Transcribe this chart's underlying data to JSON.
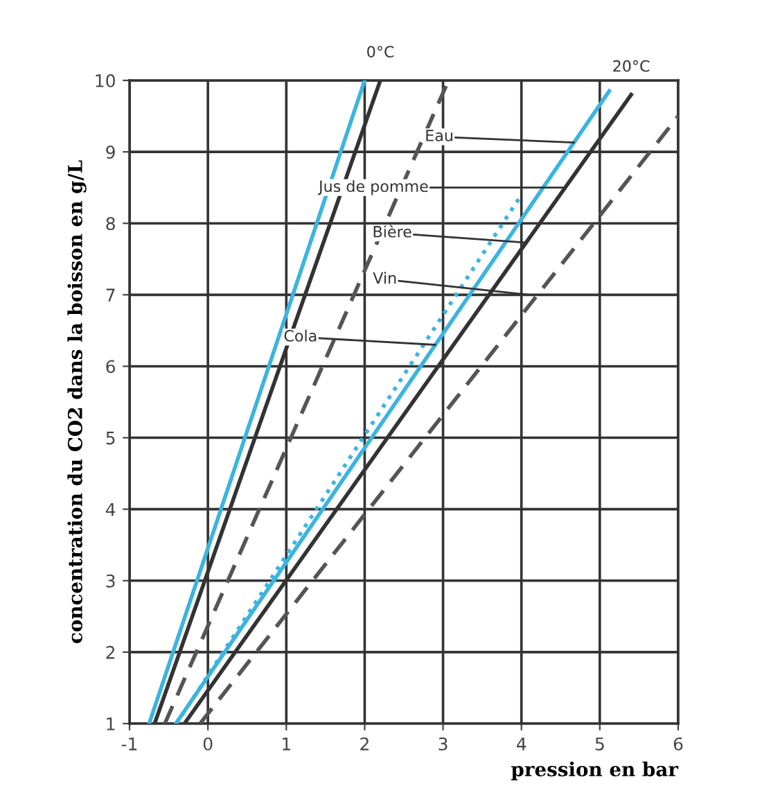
{
  "chart_data": {
    "type": "line",
    "xlabel": "pression en bar",
    "ylabel": "concentration du CO2 dans la boisson en g/L",
    "xlim": [
      -1,
      6
    ],
    "ylim": [
      1,
      10
    ],
    "xticks": [
      -1,
      0,
      1,
      2,
      3,
      4,
      5,
      6
    ],
    "yticks": [
      1,
      2,
      3,
      4,
      5,
      6,
      7,
      8,
      9,
      10
    ],
    "grid": true,
    "legend": false,
    "series": [
      {
        "x": [
          -0.75,
          2.0
        ],
        "values": [
          1,
          10
        ],
        "color": "#3bb4e0",
        "line_style": "solid"
      },
      {
        "x": [
          -0.68,
          2.2
        ],
        "values": [
          1,
          10
        ],
        "color": "#333333",
        "line_style": "solid"
      },
      {
        "x": [
          -0.55,
          3.07
        ],
        "values": [
          1,
          10
        ],
        "color": "#555555",
        "line_style": "dashed"
      },
      {
        "x": [
          -0.41,
          5.12
        ],
        "values": [
          1,
          9.85
        ],
        "color": "#3bb4e0",
        "line_style": "solid"
      },
      {
        "x": [
          -0.4,
          4.0
        ],
        "values": [
          1,
          8.4
        ],
        "color": "#3bb4e0",
        "line_style": "dotted"
      },
      {
        "x": [
          -0.3,
          5.4
        ],
        "values": [
          1,
          9.8
        ],
        "color": "#333333",
        "line_style": "solid"
      },
      {
        "x": [
          -0.1,
          6.0
        ],
        "values": [
          1,
          9.5
        ],
        "color": "#555555",
        "line_style": "dashed"
      }
    ],
    "annotations": [
      {
        "text": "0°C",
        "x": 2.2,
        "y": 10
      },
      {
        "text": "20°C",
        "x": 5.4,
        "y": 9.8
      },
      {
        "text": "Eau",
        "x": 4.67,
        "y": 9.13
      },
      {
        "text": "Jus de pomme",
        "x": 4.57,
        "y": 8.5
      },
      {
        "text": "Bière",
        "x": 4.07,
        "y": 7.73
      },
      {
        "text": "Vin",
        "x": 4.1,
        "y": 7.0
      },
      {
        "text": "Cola",
        "x": 2.9,
        "y": 6.3
      }
    ]
  }
}
